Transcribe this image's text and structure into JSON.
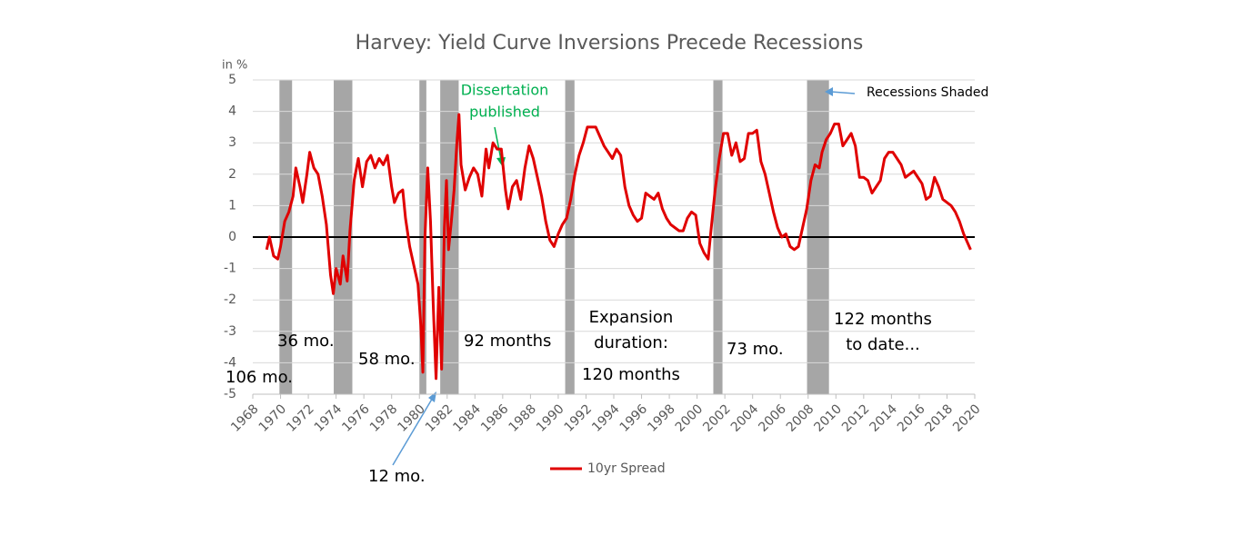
{
  "chart_data": {
    "type": "line",
    "title": "Harvey: Yield Curve Inversions Precede Recessions",
    "ylabel": "in %",
    "xlim": [
      1968,
      2020
    ],
    "xticks": [
      1968,
      1970,
      1972,
      1974,
      1976,
      1978,
      1980,
      1982,
      1984,
      1986,
      1988,
      1990,
      1992,
      1994,
      1996,
      1998,
      2000,
      2002,
      2004,
      2006,
      2008,
      2010,
      2012,
      2014,
      2016,
      2018,
      2020
    ],
    "ylim": [
      -5,
      5
    ],
    "yticks": [
      -5,
      -4,
      -3,
      -2,
      -1,
      0,
      1,
      2,
      3,
      4,
      5
    ],
    "grid": true,
    "recession_color": "#a6a6a6",
    "recessions": [
      [
        1969.92,
        1970.83
      ],
      [
        1973.83,
        1975.17
      ],
      [
        1980.0,
        1980.5
      ],
      [
        1981.5,
        1982.83
      ],
      [
        1990.5,
        1991.17
      ],
      [
        2001.17,
        2001.83
      ],
      [
        2007.92,
        2009.5
      ]
    ],
    "x": [
      1969.0,
      1969.2,
      1969.5,
      1969.8,
      1970.0,
      1970.3,
      1970.6,
      1970.9,
      1971.1,
      1971.4,
      1971.6,
      1971.9,
      1972.1,
      1972.4,
      1972.7,
      1973.0,
      1973.3,
      1973.6,
      1973.8,
      1974.0,
      1974.3,
      1974.5,
      1974.8,
      1975.0,
      1975.3,
      1975.6,
      1975.9,
      1976.2,
      1976.5,
      1976.8,
      1977.1,
      1977.4,
      1977.7,
      1978.0,
      1978.2,
      1978.5,
      1978.8,
      1979.0,
      1979.3,
      1979.6,
      1979.9,
      1980.1,
      1980.25,
      1980.4,
      1980.6,
      1980.8,
      1981.0,
      1981.2,
      1981.4,
      1981.6,
      1981.8,
      1981.95,
      1982.1,
      1982.3,
      1982.5,
      1982.7,
      1982.85,
      1983.0,
      1983.3,
      1983.6,
      1983.9,
      1984.2,
      1984.5,
      1984.8,
      1985.0,
      1985.3,
      1985.6,
      1985.9,
      1986.2,
      1986.4,
      1986.7,
      1987.0,
      1987.3,
      1987.6,
      1987.9,
      1988.2,
      1988.5,
      1988.8,
      1989.1,
      1989.4,
      1989.7,
      1990.0,
      1990.3,
      1990.6,
      1990.9,
      1991.2,
      1991.5,
      1991.8,
      1992.1,
      1992.4,
      1992.7,
      1993.0,
      1993.3,
      1993.6,
      1993.9,
      1994.2,
      1994.5,
      1994.8,
      1995.1,
      1995.4,
      1995.7,
      1996.0,
      1996.3,
      1996.6,
      1996.9,
      1997.2,
      1997.5,
      1997.8,
      1998.1,
      1998.4,
      1998.7,
      1999.0,
      1999.3,
      1999.6,
      1999.9,
      2000.2,
      2000.5,
      2000.8,
      2001.0,
      2001.3,
      2001.6,
      2001.9,
      2002.2,
      2002.5,
      2002.8,
      2003.1,
      2003.4,
      2003.7,
      2004.0,
      2004.3,
      2004.6,
      2004.9,
      2005.2,
      2005.5,
      2005.8,
      2006.1,
      2006.4,
      2006.7,
      2007.0,
      2007.3,
      2007.6,
      2007.9,
      2008.2,
      2008.5,
      2008.8,
      2009.0,
      2009.3,
      2009.6,
      2009.9,
      2010.2,
      2010.5,
      2010.8,
      2011.1,
      2011.4,
      2011.7,
      2012.0,
      2012.3,
      2012.6,
      2012.9,
      2013.2,
      2013.5,
      2013.8,
      2014.1,
      2014.4,
      2014.7,
      2015.0,
      2015.3,
      2015.6,
      2015.9,
      2016.2,
      2016.5,
      2016.8,
      2017.1,
      2017.4,
      2017.7,
      2018.0,
      2018.3,
      2018.6,
      2018.9,
      2019.2,
      2019.5,
      2019.7
    ],
    "series": [
      {
        "name": "10yr Spread",
        "color": "#e00000",
        "values": [
          -0.4,
          0.0,
          -0.6,
          -0.7,
          -0.3,
          0.5,
          0.8,
          1.3,
          2.2,
          1.6,
          1.1,
          2.0,
          2.7,
          2.2,
          2.0,
          1.3,
          0.4,
          -1.2,
          -1.8,
          -1.0,
          -1.5,
          -0.6,
          -1.4,
          0.2,
          1.8,
          2.5,
          1.6,
          2.4,
          2.6,
          2.2,
          2.5,
          2.3,
          2.6,
          1.6,
          1.1,
          1.4,
          1.5,
          0.6,
          -0.3,
          -0.9,
          -1.5,
          -2.8,
          -4.3,
          0.0,
          2.2,
          0.5,
          -2.2,
          -4.5,
          -1.6,
          -4.2,
          0.3,
          1.8,
          -0.4,
          0.5,
          1.5,
          3.0,
          3.9,
          2.3,
          1.5,
          1.9,
          2.2,
          2.0,
          1.3,
          2.8,
          2.2,
          3.0,
          2.8,
          2.8,
          1.5,
          0.9,
          1.6,
          1.8,
          1.2,
          2.2,
          2.9,
          2.5,
          1.9,
          1.3,
          0.5,
          -0.1,
          -0.3,
          0.1,
          0.4,
          0.6,
          1.2,
          2.0,
          2.6,
          3.0,
          3.5,
          3.5,
          3.5,
          3.2,
          2.9,
          2.7,
          2.5,
          2.8,
          2.6,
          1.6,
          1.0,
          0.7,
          0.5,
          0.6,
          1.4,
          1.3,
          1.2,
          1.4,
          0.9,
          0.6,
          0.4,
          0.3,
          0.2,
          0.2,
          0.6,
          0.8,
          0.7,
          -0.2,
          -0.5,
          -0.7,
          0.2,
          1.5,
          2.5,
          3.3,
          3.3,
          2.6,
          3.0,
          2.4,
          2.5,
          3.3,
          3.3,
          3.4,
          2.4,
          2.0,
          1.4,
          0.8,
          0.3,
          0.0,
          0.1,
          -0.3,
          -0.4,
          -0.3,
          0.3,
          0.9,
          1.8,
          2.3,
          2.2,
          2.7,
          3.1,
          3.3,
          3.6,
          3.6,
          2.9,
          3.1,
          3.3,
          2.9,
          1.9,
          1.9,
          1.8,
          1.4,
          1.6,
          1.8,
          2.5,
          2.7,
          2.7,
          2.5,
          2.3,
          1.9,
          2.0,
          2.1,
          1.9,
          1.7,
          1.2,
          1.3,
          1.9,
          1.6,
          1.2,
          1.1,
          1.0,
          0.8,
          0.5,
          0.1,
          -0.2,
          -0.4
        ]
      }
    ],
    "annotations": [
      "106 mo.",
      "36 mo.",
      "58 mo.",
      "12 mo.",
      "92 months",
      [
        "Expansion",
        "duration:",
        "120 months"
      ],
      "73 mo.",
      [
        "122 months",
        "to date..."
      ],
      [
        "Dissertation",
        "published"
      ],
      "Recessions Shaded"
    ]
  }
}
